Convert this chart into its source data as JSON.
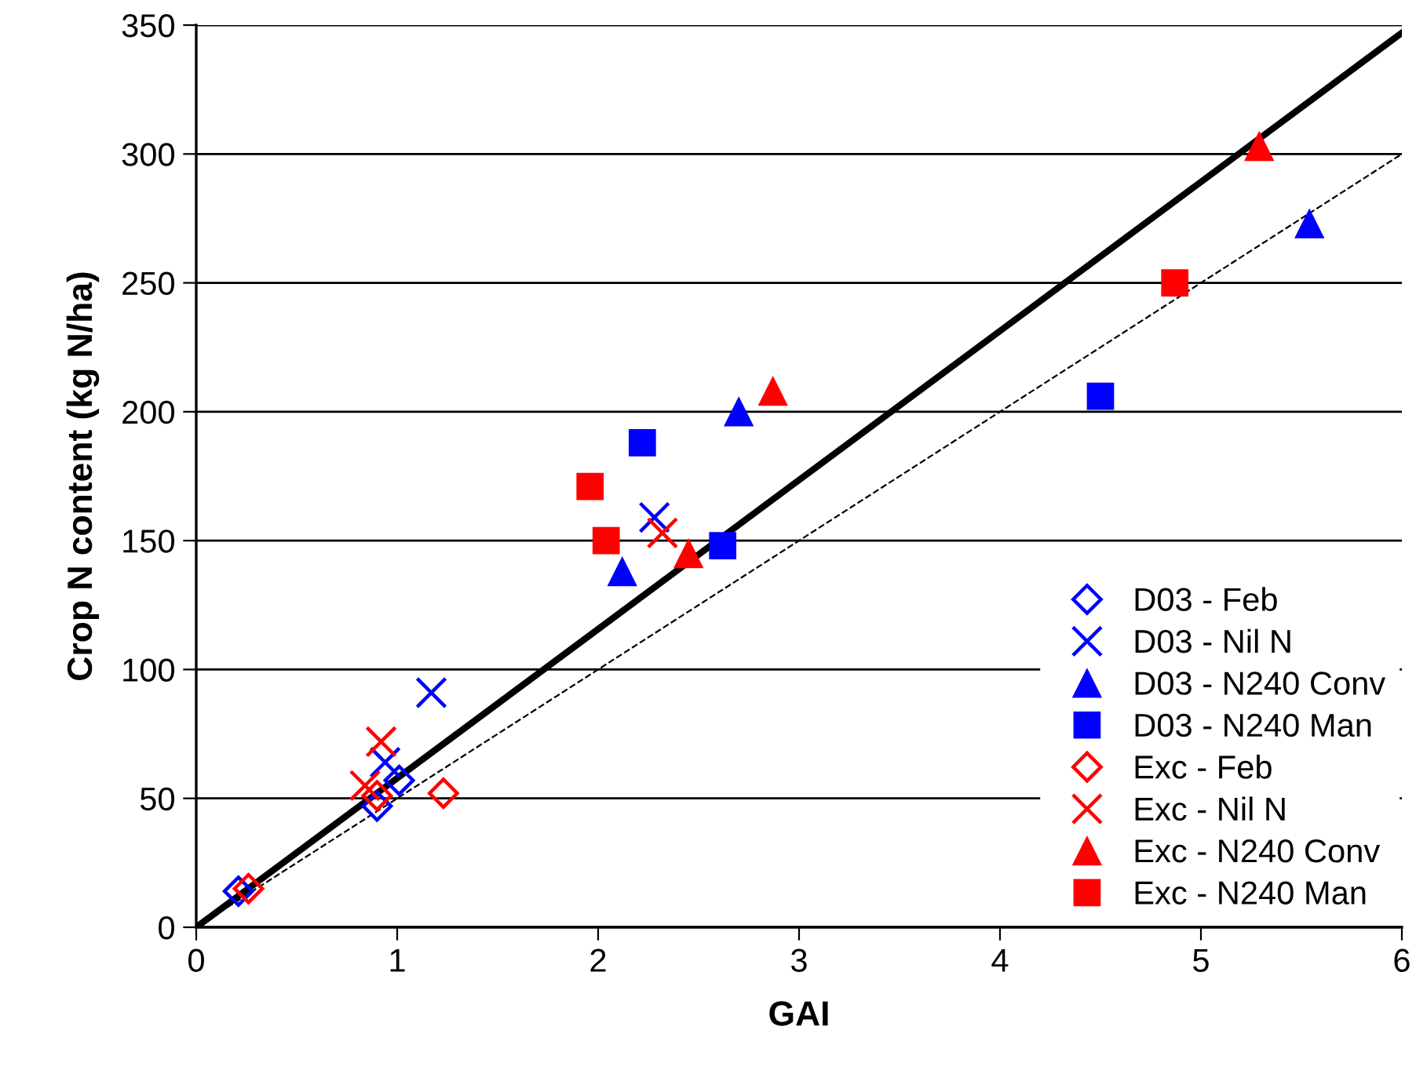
{
  "chart_data": {
    "type": "scatter",
    "xlabel": "GAI",
    "ylabel": "Crop N content (kg N/ha)",
    "xlim": [
      0,
      6
    ],
    "ylim": [
      0,
      350
    ],
    "xticks": [
      0,
      1,
      2,
      3,
      4,
      5,
      6
    ],
    "yticks": [
      0,
      50,
      100,
      150,
      200,
      250,
      300,
      350
    ],
    "grid": "y",
    "legend": "lower right",
    "series": [
      {
        "name": "D03 - Feb",
        "color": "#0000ff",
        "marker": "diamond",
        "x": [
          0.21,
          0.9,
          1.01
        ],
        "values": [
          14,
          47,
          57
        ]
      },
      {
        "name": "D03 - Nil N",
        "color": "#0000ff",
        "marker": "cross",
        "x": [
          0.94,
          1.17,
          2.28
        ],
        "values": [
          64,
          91,
          159
        ]
      },
      {
        "name": "D03 - N240 Conv",
        "color": "#0000ff",
        "marker": "triangle",
        "x": [
          2.12,
          2.7,
          5.54
        ],
        "values": [
          138,
          200,
          273
        ]
      },
      {
        "name": "D03 - N240 Man",
        "color": "#0000ff",
        "marker": "square",
        "x": [
          2.22,
          2.62,
          4.5
        ],
        "values": [
          188,
          148,
          206
        ]
      },
      {
        "name": "Exc - Feb",
        "color": "#ff0000",
        "marker": "diamond",
        "x": [
          0.26,
          0.9,
          1.23
        ],
        "values": [
          15,
          51,
          52
        ]
      },
      {
        "name": "Exc - Nil N",
        "color": "#ff0000",
        "marker": "cross",
        "x": [
          0.84,
          0.92,
          2.32
        ],
        "values": [
          55,
          72,
          153
        ]
      },
      {
        "name": "Exc - N240 Conv",
        "color": "#ff0000",
        "marker": "triangle",
        "x": [
          2.45,
          2.87,
          5.29
        ],
        "values": [
          145,
          208,
          303
        ]
      },
      {
        "name": "Exc - N240 Man",
        "color": "#ff0000",
        "marker": "square",
        "x": [
          1.96,
          2.04,
          4.87
        ],
        "values": [
          171,
          150,
          250
        ]
      },
      {
        "type": "line",
        "color": "#000000",
        "line_style": "solid",
        "marker": "none",
        "x": [
          0,
          6
        ],
        "values": [
          0,
          347
        ]
      },
      {
        "type": "line",
        "color": "#000000",
        "line_style": "dashed",
        "marker": "none",
        "x": [
          0,
          6
        ],
        "values": [
          0,
          300
        ]
      }
    ]
  }
}
